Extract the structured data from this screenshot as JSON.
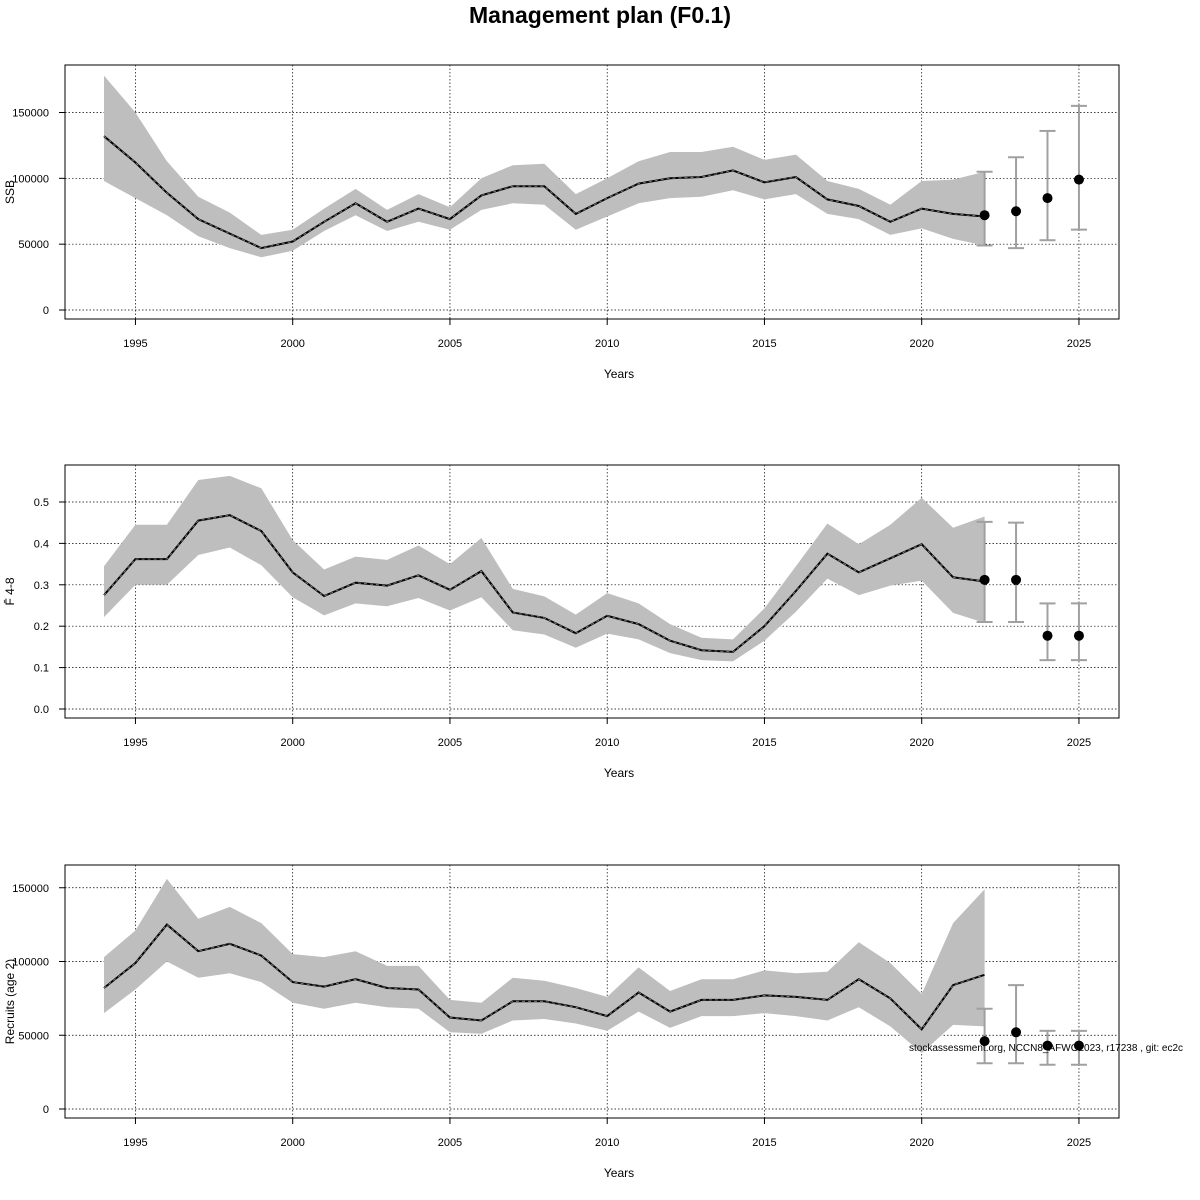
{
  "title": "Management plan (F0.1)",
  "footnote": "stockassessment.org, NCCN8_AFWG2023, r17238 , git: ec2c",
  "colors": {
    "band": "#bebebe",
    "line": "#000000",
    "grid": "#000000",
    "errorbar": "#a0a0a0",
    "point": "#000000"
  },
  "chart_data": [
    {
      "type": "line",
      "ylabel": "SSB",
      "xlabel": "Years",
      "xlim": [
        1994,
        2025
      ],
      "ylim": [
        0,
        180000
      ],
      "xticks": [
        1995,
        2000,
        2005,
        2010,
        2015,
        2020,
        2025
      ],
      "yticks": [
        0,
        50000,
        100000,
        150000
      ],
      "grid": true,
      "years": [
        1994,
        1995,
        1996,
        1997,
        1998,
        1999,
        2000,
        2001,
        2002,
        2003,
        2004,
        2005,
        2006,
        2007,
        2008,
        2009,
        2010,
        2011,
        2012,
        2013,
        2014,
        2015,
        2016,
        2017,
        2018,
        2019,
        2020,
        2021,
        2022
      ],
      "estimate": [
        132000,
        112000,
        89000,
        69000,
        58000,
        47000,
        52000,
        67000,
        81000,
        67000,
        77000,
        69000,
        87000,
        94000,
        94000,
        73000,
        85000,
        96000,
        100000,
        101000,
        106000,
        97000,
        101000,
        84000,
        79000,
        67000,
        77000,
        73000,
        71000
      ],
      "lower": [
        98000,
        85000,
        72000,
        56000,
        47000,
        40000,
        45000,
        60000,
        72000,
        60000,
        67000,
        61000,
        76000,
        81000,
        80000,
        61000,
        71000,
        81000,
        85000,
        86000,
        91000,
        84000,
        88000,
        73000,
        69000,
        57000,
        62000,
        54000,
        49000
      ],
      "upper": [
        178000,
        150000,
        113000,
        86000,
        74000,
        57000,
        61000,
        77000,
        92000,
        76000,
        88000,
        78000,
        100000,
        110000,
        111000,
        88000,
        100000,
        113000,
        120000,
        120000,
        124000,
        114000,
        118000,
        98000,
        92000,
        80000,
        98000,
        99000,
        105000
      ],
      "forecast": [
        {
          "year": 2022,
          "value": 72000,
          "low": 49000,
          "high": 105000
        },
        {
          "year": 2023,
          "value": 75000,
          "low": 47000,
          "high": 116000
        },
        {
          "year": 2024,
          "value": 85000,
          "low": 53000,
          "high": 136000
        },
        {
          "year": 2025,
          "value": 99000,
          "low": 61000,
          "high": 155000
        }
      ]
    },
    {
      "type": "line",
      "ylabel": "F̄ 4-8",
      "xlabel": "Years",
      "xlim": [
        1994,
        2025
      ],
      "ylim": [
        0,
        0.57
      ],
      "xticks": [
        1995,
        2000,
        2005,
        2010,
        2015,
        2020,
        2025
      ],
      "yticks": [
        0.0,
        0.1,
        0.2,
        0.3,
        0.4,
        0.5
      ],
      "yticklabels": [
        "0.0",
        "0.1",
        "0.2",
        "0.3",
        "0.4",
        "0.5"
      ],
      "grid": true,
      "years": [
        1994,
        1995,
        1996,
        1997,
        1998,
        1999,
        2000,
        2001,
        2002,
        2003,
        2004,
        2005,
        2006,
        2007,
        2008,
        2009,
        2010,
        2011,
        2012,
        2013,
        2014,
        2015,
        2016,
        2017,
        2018,
        2019,
        2020,
        2021,
        2022
      ],
      "estimate": [
        0.275,
        0.362,
        0.362,
        0.455,
        0.468,
        0.43,
        0.33,
        0.273,
        0.305,
        0.298,
        0.323,
        0.288,
        0.333,
        0.233,
        0.22,
        0.183,
        0.225,
        0.205,
        0.165,
        0.142,
        0.138,
        0.2,
        0.285,
        0.375,
        0.33,
        0.364,
        0.398,
        0.318,
        0.308
      ],
      "lower": [
        0.222,
        0.3,
        0.3,
        0.372,
        0.39,
        0.347,
        0.27,
        0.226,
        0.255,
        0.248,
        0.268,
        0.238,
        0.27,
        0.19,
        0.18,
        0.148,
        0.182,
        0.168,
        0.135,
        0.118,
        0.115,
        0.165,
        0.235,
        0.315,
        0.275,
        0.298,
        0.31,
        0.232,
        0.208
      ],
      "upper": [
        0.345,
        0.445,
        0.445,
        0.553,
        0.563,
        0.533,
        0.408,
        0.337,
        0.368,
        0.36,
        0.395,
        0.35,
        0.413,
        0.29,
        0.272,
        0.228,
        0.28,
        0.255,
        0.205,
        0.172,
        0.168,
        0.243,
        0.345,
        0.448,
        0.398,
        0.445,
        0.51,
        0.438,
        0.465
      ],
      "forecast": [
        {
          "year": 2022,
          "value": 0.312,
          "low": 0.21,
          "high": 0.452
        },
        {
          "year": 2023,
          "value": 0.312,
          "low": 0.21,
          "high": 0.45
        },
        {
          "year": 2024,
          "value": 0.177,
          "low": 0.118,
          "high": 0.255
        },
        {
          "year": 2025,
          "value": 0.177,
          "low": 0.118,
          "high": 0.255
        }
      ]
    },
    {
      "type": "line",
      "ylabel": "Recruits (age 2)",
      "xlabel": "Years",
      "xlim": [
        1994,
        2025
      ],
      "ylim": [
        0,
        160000
      ],
      "xticks": [
        1995,
        2000,
        2005,
        2010,
        2015,
        2020,
        2025
      ],
      "yticks": [
        0,
        50000,
        100000,
        150000
      ],
      "grid": true,
      "years": [
        1994,
        1995,
        1996,
        1997,
        1998,
        1999,
        2000,
        2001,
        2002,
        2003,
        2004,
        2005,
        2006,
        2007,
        2008,
        2009,
        2010,
        2011,
        2012,
        2013,
        2014,
        2015,
        2016,
        2017,
        2018,
        2019,
        2020,
        2021,
        2022
      ],
      "estimate": [
        82000,
        99000,
        125000,
        107000,
        112000,
        104000,
        86000,
        83000,
        88000,
        82000,
        81000,
        62000,
        60000,
        73000,
        73000,
        69000,
        63000,
        79000,
        66000,
        74000,
        74000,
        77000,
        76000,
        74000,
        88000,
        75000,
        54000,
        84000,
        91000
      ],
      "lower": [
        65000,
        81000,
        100000,
        89000,
        92000,
        86000,
        72000,
        68000,
        72000,
        69000,
        68000,
        52000,
        51000,
        60000,
        61000,
        58000,
        53000,
        66000,
        55000,
        63000,
        63000,
        65000,
        63000,
        60000,
        69000,
        56000,
        38000,
        57000,
        56000
      ],
      "upper": [
        103000,
        121000,
        156000,
        129000,
        137000,
        126000,
        105000,
        103000,
        107000,
        97000,
        97000,
        74000,
        72000,
        89000,
        87000,
        82000,
        76000,
        96000,
        80000,
        88000,
        88000,
        94000,
        92000,
        93000,
        113000,
        99000,
        78000,
        126000,
        149000
      ],
      "forecast": [
        {
          "year": 2022,
          "value": 46000,
          "low": 31000,
          "high": 68000
        },
        {
          "year": 2023,
          "value": 52000,
          "low": 31000,
          "high": 84000
        },
        {
          "year": 2024,
          "value": 43000,
          "low": 30000,
          "high": 53000
        },
        {
          "year": 2025,
          "value": 43000,
          "low": 30000,
          "high": 53000
        }
      ]
    }
  ]
}
